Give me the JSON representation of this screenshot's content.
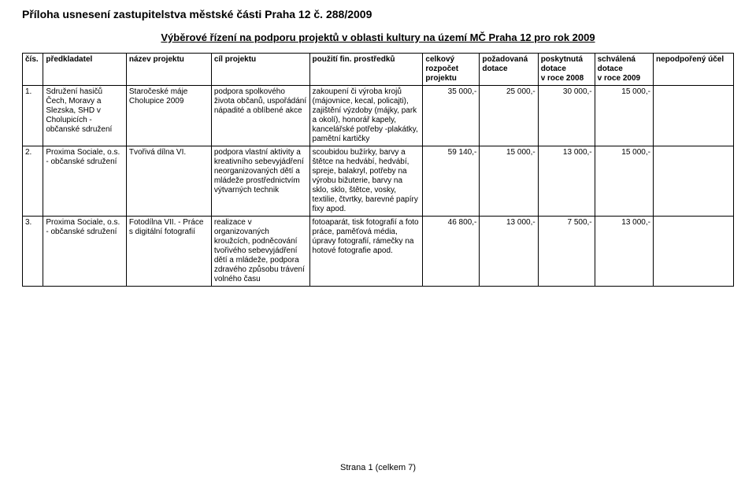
{
  "main_title": "Příloha usnesení zastupitelstva městské části Praha 12 č. 288/2009",
  "subtitle": "Výběrové řízení na podporu projektů v oblasti kultury na území MČ Praha 12 pro rok 2009",
  "headers": {
    "cis": "čís.",
    "predkladatel": "předkladatel",
    "nazev": "název projektu",
    "cil": "cíl projektu",
    "pouziti": "použití fin. prostředků",
    "celkovy_l1": "celkový",
    "celkovy_l2": "rozpočet",
    "celkovy_l3": "projektu",
    "pozad_l1": "požadovaná",
    "pozad_l2": "dotace",
    "posk_l1": "poskytnutá",
    "posk_l2": "dotace",
    "posk_l3": "v roce 2008",
    "schv_l1": "schválená",
    "schv_l2": "dotace",
    "schv_l3": "v roce 2009",
    "nep": "nepodpořený účel"
  },
  "rows": [
    {
      "cis": "1.",
      "predkladatel": "Sdružení hasičů Čech, Moravy a Slezska, SHD v Cholupicích - občanské sdružení",
      "nazev": "Staročeské máje Cholupice 2009",
      "cil": "podpora spolkového života občanů, uspořádání nápadité a oblíbené akce",
      "pouziti": "zakoupení či výroba krojů (májovnice, kecal, policajti), zajištění výzdoby (májky, park a okolí), honorář kapely, kancelářské potřeby -plakátky, pamětní kartičky",
      "celkovy": "35 000,-",
      "pozad": "25 000,-",
      "posk": "30 000,-",
      "schv": "15 000,-",
      "nep": ""
    },
    {
      "cis": "2.",
      "predkladatel": "Proxima Sociale, o.s. - občanské sdružení",
      "nazev": "Tvořivá dílna VI.",
      "cil": "podpora vlastní aktivity a kreativního sebevyjádření neorganizovaných dětí a mládeže prostřednictvím výtvarných technik",
      "pouziti": "scoubidou bužírky, barvy a štětce na hedvábí, hedvábí, spreje, balakryl, potřeby na výrobu bižuterie, barvy na sklo, sklo, štětce, vosky, textilie, čtvrtky, barevné papíry fixy apod.",
      "celkovy": "59 140,-",
      "pozad": "15 000,-",
      "posk": "13 000,-",
      "schv": "15 000,-",
      "nep": ""
    },
    {
      "cis": "3.",
      "predkladatel": "Proxima Sociale, o.s. - občanské sdružení",
      "nazev": "Fotodílna VII. - Práce s digitální fotografií",
      "cil": "realizace v organizovaných kroužcích, podněcování tvořivého sebevyjádření dětí a mládeže, podpora zdravého způsobu trávení volného času",
      "pouziti": "fotoaparát, tisk fotografií a foto práce, paměťová média, úpravy fotografií, rámečky na hotové fotografie apod.",
      "celkovy": "46 800,-",
      "pozad": "13 000,-",
      "posk": "7 500,-",
      "schv": "13 000,-",
      "nep": ""
    }
  ],
  "footer": "Strana 1 (celkem 7)"
}
